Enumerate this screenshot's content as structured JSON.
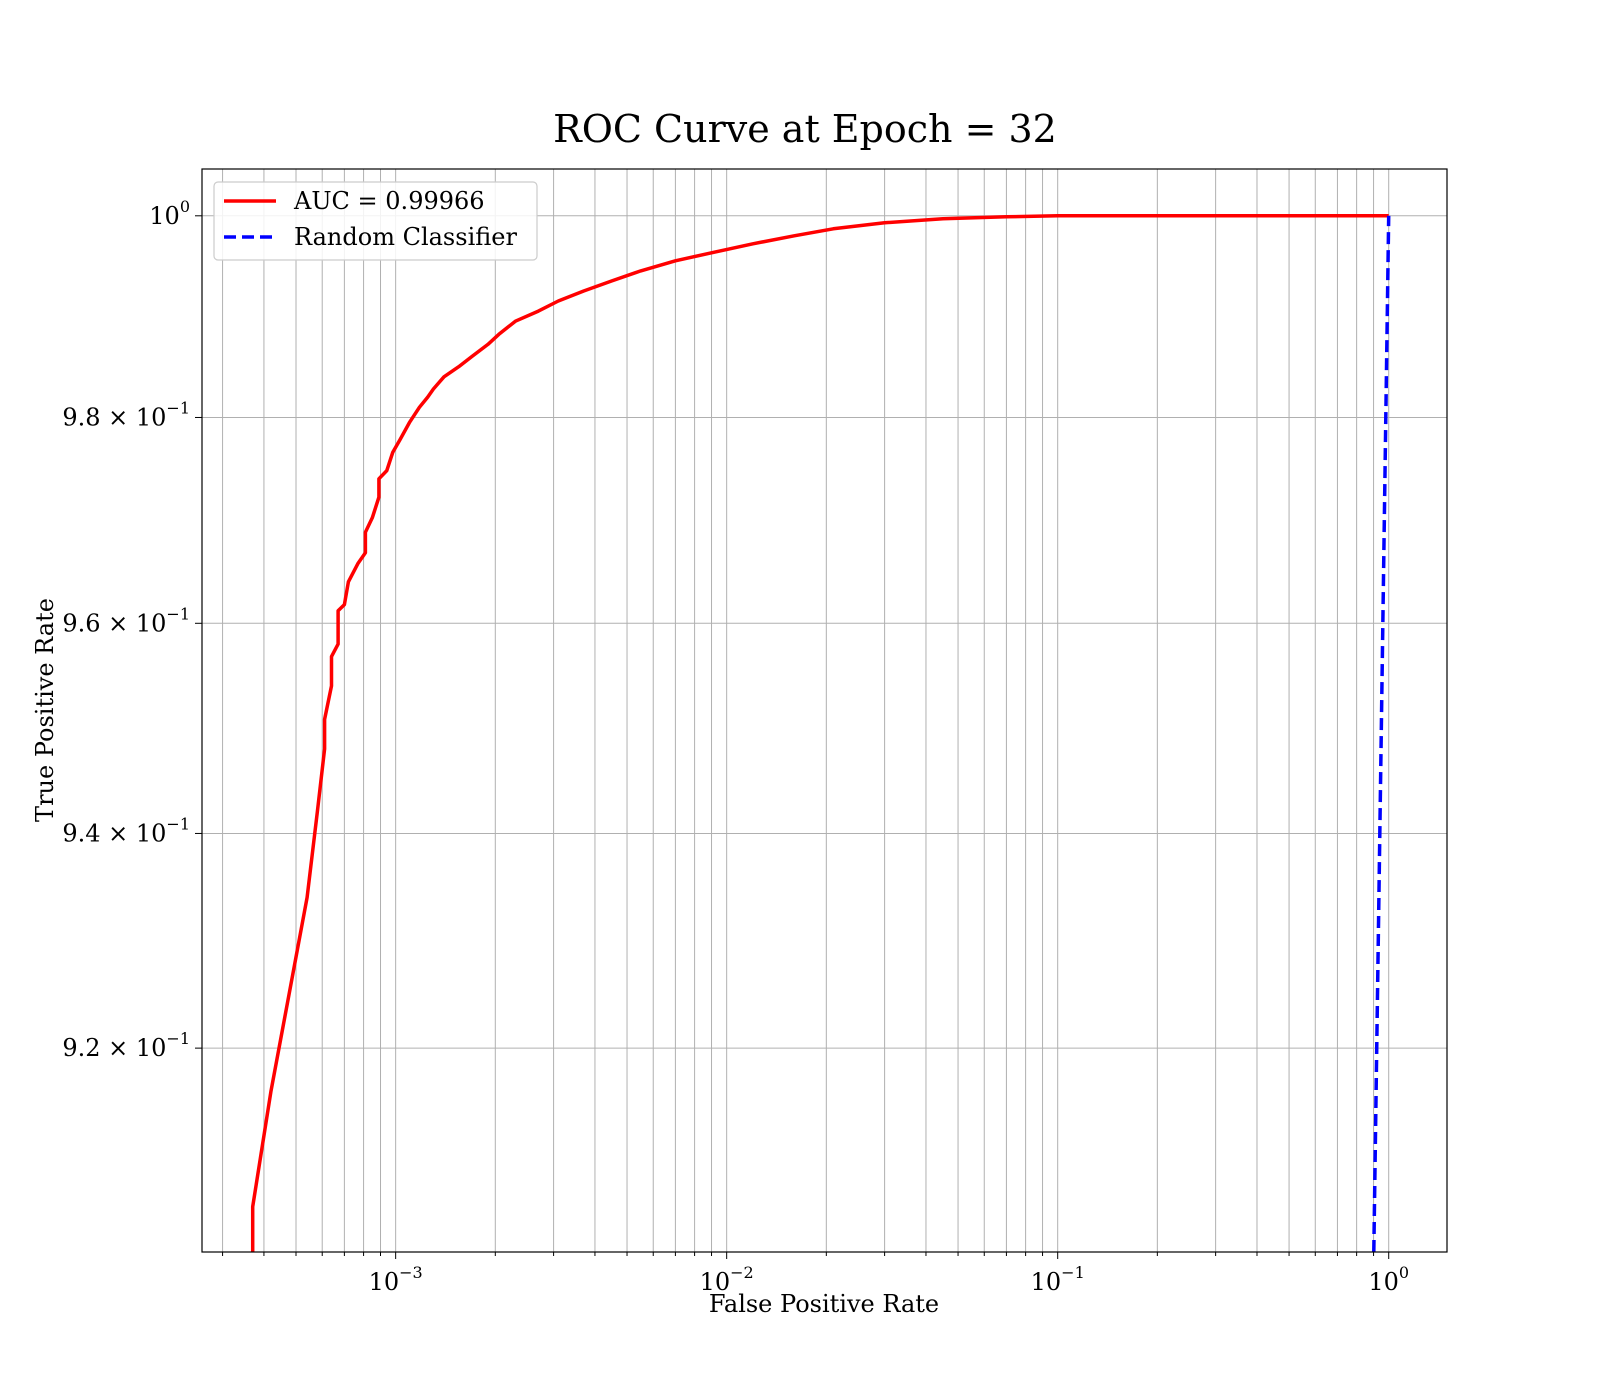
{
  "chart_data": {
    "type": "line",
    "title": "ROC Curve at Epoch = 32",
    "xlabel": "False Positive Rate",
    "ylabel": "True Positive Rate",
    "xscale": "log",
    "yscale": "log",
    "xlim": [
      0.00026,
      1.5
    ],
    "ylim": [
      0.9014,
      1.0047
    ],
    "grid": true,
    "grid_minor": true,
    "legend_position": "top-left",
    "x_ticks": [
      {
        "value": 0.001,
        "label": "10",
        "sup": "−3"
      },
      {
        "value": 0.01,
        "label": "10",
        "sup": "−2"
      },
      {
        "value": 0.1,
        "label": "10",
        "sup": "−1"
      },
      {
        "value": 1,
        "label": "10",
        "sup": "0"
      }
    ],
    "y_ticks": [
      {
        "value": 1.0,
        "label": "10",
        "sup": "0"
      },
      {
        "value": 0.98,
        "label": "9.8 × 10",
        "sup": "−1"
      },
      {
        "value": 0.96,
        "label": "9.6 × 10",
        "sup": "−1"
      },
      {
        "value": 0.94,
        "label": "9.4 × 10",
        "sup": "−1"
      },
      {
        "value": 0.92,
        "label": "9.2 × 10",
        "sup": "−1"
      }
    ],
    "series": [
      {
        "name": "AUC = 0.99966",
        "color": "#ff0000",
        "style": "solid",
        "points": [
          [
            0.00037,
            0.9014
          ],
          [
            0.00037,
            0.9055
          ],
          [
            0.00042,
            0.916
          ],
          [
            0.00047,
            0.924
          ],
          [
            0.00054,
            0.934
          ],
          [
            0.00058,
            0.942
          ],
          [
            0.00061,
            0.948
          ],
          [
            0.00061,
            0.9508
          ],
          [
            0.00064,
            0.954
          ],
          [
            0.00064,
            0.9568
          ],
          [
            0.00067,
            0.958
          ],
          [
            0.00067,
            0.9612
          ],
          [
            0.0007,
            0.9618
          ],
          [
            0.00072,
            0.964
          ],
          [
            0.00077,
            0.9658
          ],
          [
            0.00081,
            0.9668
          ],
          [
            0.00081,
            0.9688
          ],
          [
            0.00085,
            0.9702
          ],
          [
            0.00089,
            0.9722
          ],
          [
            0.00089,
            0.974
          ],
          [
            0.00094,
            0.9748
          ],
          [
            0.00098,
            0.9766
          ],
          [
            0.00103,
            0.9778
          ],
          [
            0.0011,
            0.9795
          ],
          [
            0.00118,
            0.981
          ],
          [
            0.00125,
            0.982
          ],
          [
            0.0013,
            0.9828
          ],
          [
            0.0014,
            0.984
          ],
          [
            0.00155,
            0.985
          ],
          [
            0.0017,
            0.986
          ],
          [
            0.0019,
            0.9872
          ],
          [
            0.00205,
            0.9882
          ],
          [
            0.0023,
            0.9895
          ],
          [
            0.0027,
            0.9905
          ],
          [
            0.0031,
            0.9915
          ],
          [
            0.0037,
            0.9925
          ],
          [
            0.0045,
            0.9935
          ],
          [
            0.0055,
            0.9945
          ],
          [
            0.007,
            0.9955
          ],
          [
            0.009,
            0.9963
          ],
          [
            0.012,
            0.9972
          ],
          [
            0.016,
            0.998
          ],
          [
            0.021,
            0.9987
          ],
          [
            0.03,
            0.9993
          ],
          [
            0.045,
            0.9997
          ],
          [
            0.07,
            0.9999
          ],
          [
            0.1,
            1.0
          ],
          [
            1.0,
            1.0
          ]
        ]
      },
      {
        "name": "Random Classifier",
        "color": "#0000ff",
        "style": "dashed",
        "points": [
          [
            0.9014,
            0.9014
          ],
          [
            1.0,
            1.0
          ]
        ]
      }
    ]
  }
}
